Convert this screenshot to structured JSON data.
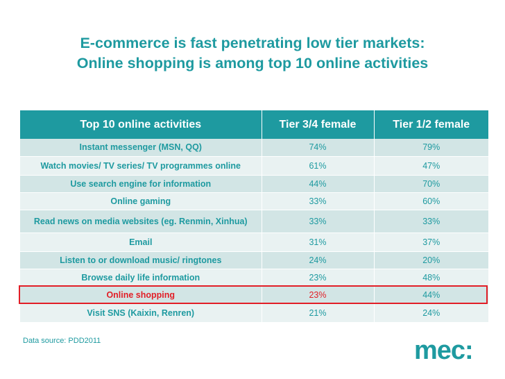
{
  "title": {
    "line1": "E-commerce is fast penetrating low tier markets:",
    "line2": "Online shopping is among top 10 online activities"
  },
  "chart_data": {
    "type": "table",
    "columns": [
      "Top 10 online activities",
      "Tier 3/4 female",
      "Tier 1/2 female"
    ],
    "rows": [
      {
        "activity": "Instant messenger (MSN, QQ)",
        "tier34": "74%",
        "tier12": "79%"
      },
      {
        "activity": "Watch movies/ TV series/ TV programmes online",
        "tier34": "61%",
        "tier12": "47%"
      },
      {
        "activity": "Use search engine for information",
        "tier34": "44%",
        "tier12": "70%"
      },
      {
        "activity": "Online gaming",
        "tier34": "33%",
        "tier12": "60%"
      },
      {
        "activity": "Read news on media websites (eg. Renmin, Xinhua)",
        "tier34": "33%",
        "tier12": "33%"
      },
      {
        "activity": "Email",
        "tier34": "31%",
        "tier12": "37%"
      },
      {
        "activity": "Listen to or download music/ ringtones",
        "tier34": "24%",
        "tier12": "20%"
      },
      {
        "activity": "Browse daily life information",
        "tier34": "23%",
        "tier12": "48%"
      },
      {
        "activity": "Online shopping",
        "tier34": "23%",
        "tier12": "44%",
        "highlighted": true
      },
      {
        "activity": "Visit SNS (Kaixin, Renren)",
        "tier34": "21%",
        "tier12": "24%"
      }
    ]
  },
  "source": "Data source: PDD2011",
  "logo": {
    "text": "mec:",
    "icon": "mec-logo"
  },
  "colors": {
    "accent": "#1e9aa0",
    "highlight": "#e21e26",
    "row_dark": "#d2e5e5",
    "row_light": "#e9f2f2"
  }
}
